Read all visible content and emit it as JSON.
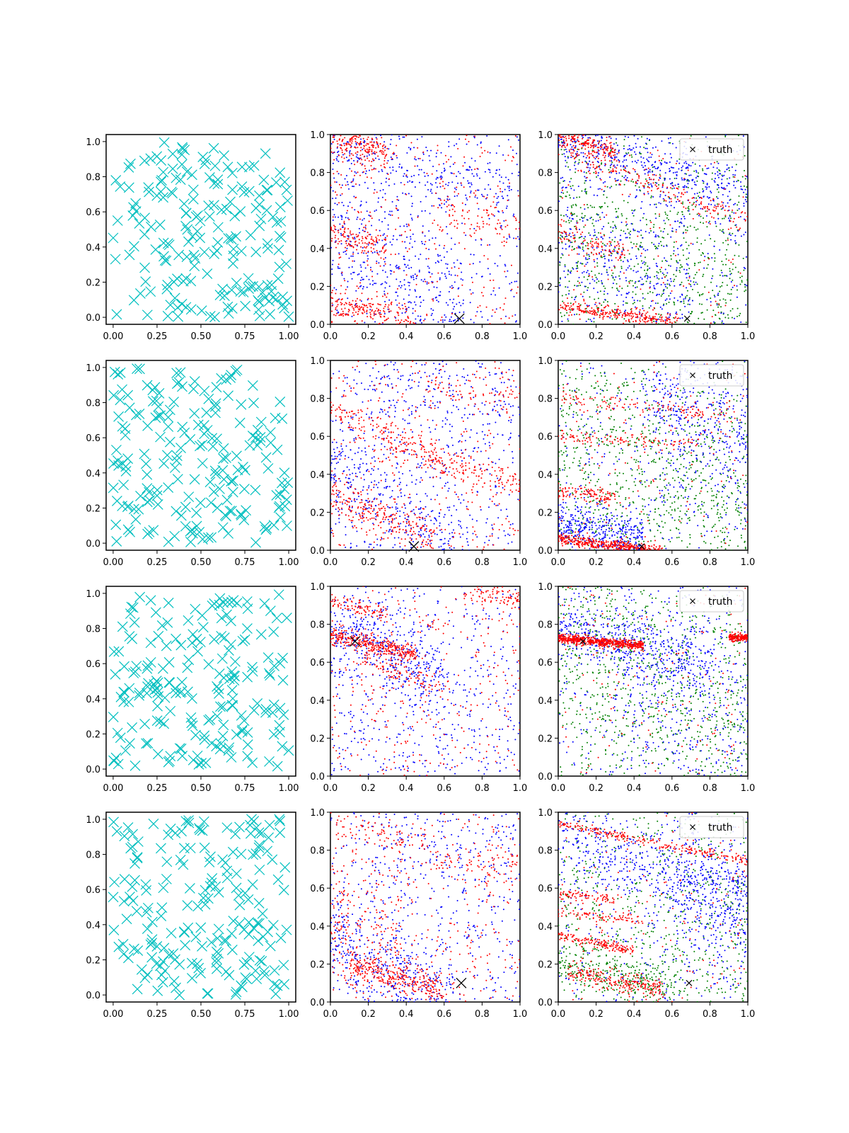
{
  "chart_data": {
    "type": "scatter",
    "layout": "4x3 grid of scatter subplots",
    "colors": {
      "samples": "#00bfbf",
      "red_series": "#ff0000",
      "blue_series": "#0000ff",
      "green_series": "#008000",
      "truth": "#000000",
      "axes": "#000000",
      "background": "#ffffff"
    },
    "columns": [
      {
        "description": "uniform random samples, cyan x markers",
        "xlim": [
          -0.04,
          1.04
        ],
        "ylim": [
          -0.04,
          1.04
        ],
        "xticks": [
          "0.00",
          "0.25",
          "0.50",
          "0.75",
          "1.00"
        ],
        "yticks": [
          "0.0",
          "0.2",
          "0.4",
          "0.6",
          "0.8",
          "1.0"
        ],
        "n_points": 200
      },
      {
        "description": "red and blue point clouds, large black x marks truth",
        "xlim": [
          0,
          1
        ],
        "ylim": [
          0,
          1
        ],
        "xticks": [
          "0.0",
          "0.2",
          "0.4",
          "0.6",
          "0.8",
          "1.0"
        ],
        "yticks": [
          "0.0",
          "0.2",
          "0.4",
          "0.6",
          "0.8",
          "1.0"
        ]
      },
      {
        "description": "red, blue and green point clouds, small black x marks truth",
        "xlim": [
          0,
          1
        ],
        "ylim": [
          0,
          1
        ],
        "xticks": [
          "0.0",
          "0.2",
          "0.4",
          "0.6",
          "0.8",
          "1.0"
        ],
        "yticks": [
          "0.0",
          "0.2",
          "0.4",
          "0.6",
          "0.8",
          "1.0"
        ],
        "legend": {
          "entries": [
            "truth"
          ],
          "placement": "upper right"
        }
      }
    ],
    "rows": [
      {
        "truth": [
          0.68,
          0.03
        ],
        "col2_red_bands": [
          {
            "x0": 0.0,
            "y0": 1.0,
            "slope": -0.3,
            "width": 0.05,
            "xmax": 0.3,
            "weight": 3
          },
          {
            "x0": 0.0,
            "y0": 0.48,
            "slope": -0.3,
            "width": 0.04,
            "xmax": 0.3,
            "weight": 2
          },
          {
            "x0": 0.0,
            "y0": 0.12,
            "slope": -0.25,
            "width": 0.05,
            "xmax": 0.45,
            "weight": 3
          },
          {
            "x0": 0.6,
            "y0": 0.6,
            "slope": -0.25,
            "width": 0.05,
            "xmax": 1.0,
            "weight": 1
          }
        ],
        "col2_blue_bands": [
          {
            "x0": 0.0,
            "y0": 0.5,
            "slope": -0.6,
            "width": 0.18,
            "xmax": 0.7,
            "weight": 3
          },
          {
            "x0": 0.0,
            "y0": 0.95,
            "slope": -0.3,
            "width": 0.07,
            "xmax": 1.0,
            "weight": 2
          }
        ],
        "col3_red_bands": [
          {
            "x0": 0.0,
            "y0": 0.1,
            "slope": -0.15,
            "width": 0.02,
            "xmax": 0.65,
            "weight": 3
          },
          {
            "x0": 0.0,
            "y0": 1.0,
            "slope": -0.3,
            "width": 0.025,
            "xmax": 0.3,
            "weight": 2
          },
          {
            "x0": 0.0,
            "y0": 0.48,
            "slope": -0.3,
            "width": 0.03,
            "xmax": 0.35,
            "weight": 1
          },
          {
            "x0": 0.0,
            "y0": 0.93,
            "slope": -0.4,
            "width": 0.03,
            "xmax": 1.0,
            "weight": 2
          }
        ],
        "col3_blue_bands": [
          {
            "x0": 0.0,
            "y0": 0.97,
            "slope": -0.3,
            "width": 0.08,
            "xmax": 1.0,
            "weight": 3
          },
          {
            "x0": 0.0,
            "y0": 0.4,
            "slope": -0.3,
            "width": 0.2,
            "xmax": 0.7,
            "weight": 2
          }
        ],
        "col3_green_bands": [
          {
            "x0": 0.0,
            "y0": 0.5,
            "slope": -0.4,
            "width": 0.3,
            "xmax": 1.0,
            "weight": 2
          }
        ]
      },
      {
        "truth": [
          0.44,
          0.02
        ],
        "col2_red_bands": [
          {
            "x0": 0.0,
            "y0": 0.75,
            "slope": -0.45,
            "width": 0.04,
            "xmax": 0.6,
            "weight": 2
          },
          {
            "x0": 0.0,
            "y0": 0.3,
            "slope": -0.45,
            "width": 0.05,
            "xmax": 0.55,
            "weight": 3
          },
          {
            "x0": 0.3,
            "y0": 0.55,
            "slope": -0.3,
            "width": 0.04,
            "xmax": 1.0,
            "weight": 2
          },
          {
            "x0": 0.5,
            "y0": 0.88,
            "slope": -0.2,
            "width": 0.04,
            "xmax": 1.0,
            "weight": 1
          }
        ],
        "col2_blue_bands": [
          {
            "x0": 0.0,
            "y0": 0.45,
            "slope": -0.6,
            "width": 0.18,
            "xmax": 0.7,
            "weight": 3
          },
          {
            "x0": 0.2,
            "y0": 0.85,
            "slope": -0.15,
            "width": 0.1,
            "xmax": 1.0,
            "weight": 1
          }
        ],
        "col3_red_bands": [
          {
            "x0": 0.0,
            "y0": 0.06,
            "slope": -0.12,
            "width": 0.015,
            "xmax": 0.55,
            "weight": 4
          },
          {
            "x0": 0.0,
            "y0": 0.6,
            "slope": -0.05,
            "width": 0.02,
            "xmax": 0.75,
            "weight": 1
          },
          {
            "x0": 0.0,
            "y0": 0.31,
            "slope": -0.1,
            "width": 0.02,
            "xmax": 0.3,
            "weight": 1
          },
          {
            "x0": 0.0,
            "y0": 0.8,
            "slope": -0.1,
            "width": 0.02,
            "xmax": 1.0,
            "weight": 1
          }
        ],
        "col3_blue_bands": [
          {
            "x0": 0.0,
            "y0": 0.14,
            "slope": -0.2,
            "width": 0.06,
            "xmax": 0.45,
            "weight": 3
          },
          {
            "x0": 0.5,
            "y0": 0.8,
            "slope": -0.5,
            "width": 0.2,
            "xmax": 1.0,
            "weight": 3
          }
        ],
        "col3_green_bands": [
          {
            "x0": 0.0,
            "y0": 0.55,
            "slope": -0.4,
            "width": 0.3,
            "xmax": 1.0,
            "weight": 2
          }
        ]
      },
      {
        "truth": [
          0.13,
          0.71
        ],
        "col2_red_bands": [
          {
            "x0": 0.0,
            "y0": 0.75,
            "slope": -0.25,
            "width": 0.025,
            "xmax": 0.45,
            "weight": 4
          },
          {
            "x0": 0.15,
            "y0": 0.6,
            "slope": -0.3,
            "width": 0.03,
            "xmax": 0.6,
            "weight": 1
          },
          {
            "x0": 0.7,
            "y0": 0.97,
            "slope": -0.15,
            "width": 0.03,
            "xmax": 1.0,
            "weight": 1
          },
          {
            "x0": 0.0,
            "y0": 0.92,
            "slope": -0.2,
            "width": 0.02,
            "xmax": 0.3,
            "weight": 1
          }
        ],
        "col2_blue_bands": [
          {
            "x0": 0.0,
            "y0": 0.78,
            "slope": -0.4,
            "width": 0.08,
            "xmax": 0.6,
            "weight": 3
          },
          {
            "x0": 0.0,
            "y0": 0.5,
            "slope": -0.1,
            "width": 0.3,
            "xmax": 1.0,
            "weight": 2
          }
        ],
        "col3_red_bands": [
          {
            "x0": 0.0,
            "y0": 0.725,
            "slope": -0.08,
            "width": 0.012,
            "xmax": 0.45,
            "weight": 4
          },
          {
            "x0": 0.9,
            "y0": 0.73,
            "slope": 0.0,
            "width": 0.01,
            "xmax": 1.0,
            "weight": 1
          }
        ],
        "col3_blue_bands": [
          {
            "x0": 0.0,
            "y0": 0.8,
            "slope": -0.3,
            "width": 0.08,
            "xmax": 0.8,
            "weight": 3
          },
          {
            "x0": 0.3,
            "y0": 0.5,
            "slope": -0.2,
            "width": 0.3,
            "xmax": 1.0,
            "weight": 2
          }
        ],
        "col3_green_bands": [
          {
            "x0": 0.0,
            "y0": 0.6,
            "slope": -0.3,
            "width": 0.3,
            "xmax": 1.0,
            "weight": 2
          }
        ]
      },
      {
        "truth": [
          0.69,
          0.1
        ],
        "col2_red_bands": [
          {
            "x0": 0.1,
            "y0": 0.2,
            "slope": -0.3,
            "width": 0.04,
            "xmax": 0.6,
            "weight": 4
          },
          {
            "x0": 0.0,
            "y0": 0.5,
            "slope": -0.6,
            "width": 0.15,
            "xmax": 0.4,
            "weight": 2
          },
          {
            "x0": 0.0,
            "y0": 0.95,
            "slope": -0.2,
            "width": 0.04,
            "xmax": 0.5,
            "weight": 1
          },
          {
            "x0": 0.5,
            "y0": 0.75,
            "slope": -0.1,
            "width": 0.05,
            "xmax": 1.0,
            "weight": 1
          }
        ],
        "col2_blue_bands": [
          {
            "x0": 0.0,
            "y0": 0.35,
            "slope": -0.55,
            "width": 0.12,
            "xmax": 0.65,
            "weight": 3
          },
          {
            "x0": 0.2,
            "y0": 0.8,
            "slope": -0.2,
            "width": 0.15,
            "xmax": 1.0,
            "weight": 1
          }
        ],
        "col3_red_bands": [
          {
            "x0": 0.0,
            "y0": 0.94,
            "slope": -0.2,
            "width": 0.012,
            "xmax": 1.0,
            "weight": 3
          },
          {
            "x0": 0.0,
            "y0": 0.35,
            "slope": -0.2,
            "width": 0.015,
            "xmax": 0.4,
            "weight": 2
          },
          {
            "x0": 0.0,
            "y0": 0.47,
            "slope": -0.1,
            "width": 0.012,
            "xmax": 0.45,
            "weight": 1
          },
          {
            "x0": 0.05,
            "y0": 0.16,
            "slope": -0.2,
            "width": 0.03,
            "xmax": 0.55,
            "weight": 3
          },
          {
            "x0": 0.0,
            "y0": 0.57,
            "slope": -0.1,
            "width": 0.015,
            "xmax": 0.3,
            "weight": 1
          }
        ],
        "col3_blue_bands": [
          {
            "x0": 0.0,
            "y0": 0.85,
            "slope": -0.3,
            "width": 0.1,
            "xmax": 1.0,
            "weight": 3
          },
          {
            "x0": 0.6,
            "y0": 0.6,
            "slope": -0.3,
            "width": 0.2,
            "xmax": 1.0,
            "weight": 2
          }
        ],
        "col3_green_bands": [
          {
            "x0": 0.0,
            "y0": 0.5,
            "slope": -0.4,
            "width": 0.35,
            "xmax": 1.0,
            "weight": 2
          },
          {
            "x0": 0.0,
            "y0": 0.2,
            "slope": -0.2,
            "width": 0.06,
            "xmax": 0.6,
            "weight": 2
          }
        ]
      }
    ]
  }
}
